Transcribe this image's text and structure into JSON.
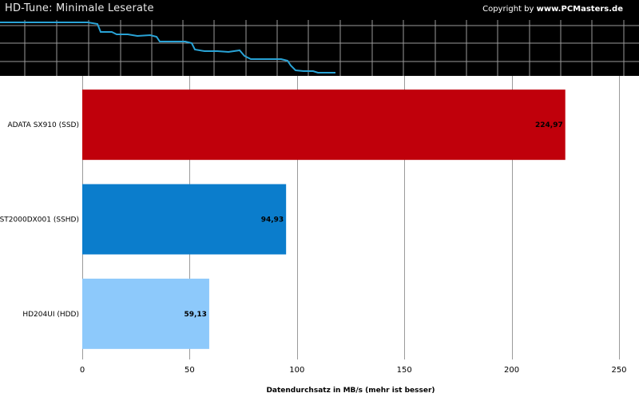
{
  "header": {
    "title": "HD-Tune: Minimale Leserate",
    "copyright_prefix": "Copyright by ",
    "copyright_site": "www.PCMasters.de"
  },
  "colors": {
    "header_bg": "#000000",
    "header_grid": "#9a9a9a",
    "header_line": "#29a3d6",
    "grid": "#9a9a9a"
  },
  "chart_data": {
    "type": "bar",
    "orientation": "horizontal",
    "categories": [
      "ADATA SX910 (SSD)",
      "ST2000DX001 (SSHD)",
      "HD204UI (HDD)"
    ],
    "values": [
      224.97,
      94.93,
      59.13
    ],
    "value_labels": [
      "224,97",
      "94,93",
      "59,13"
    ],
    "bar_colors": [
      "#c0000b",
      "#0b7dcc",
      "#8dc9fb"
    ],
    "xlabel": "Datendurchsatz in MB/s (mehr ist besser)",
    "xlim": [
      0,
      250
    ],
    "xticks": [
      0,
      50,
      100,
      150,
      200,
      250
    ],
    "grid": true,
    "legend": "none"
  }
}
